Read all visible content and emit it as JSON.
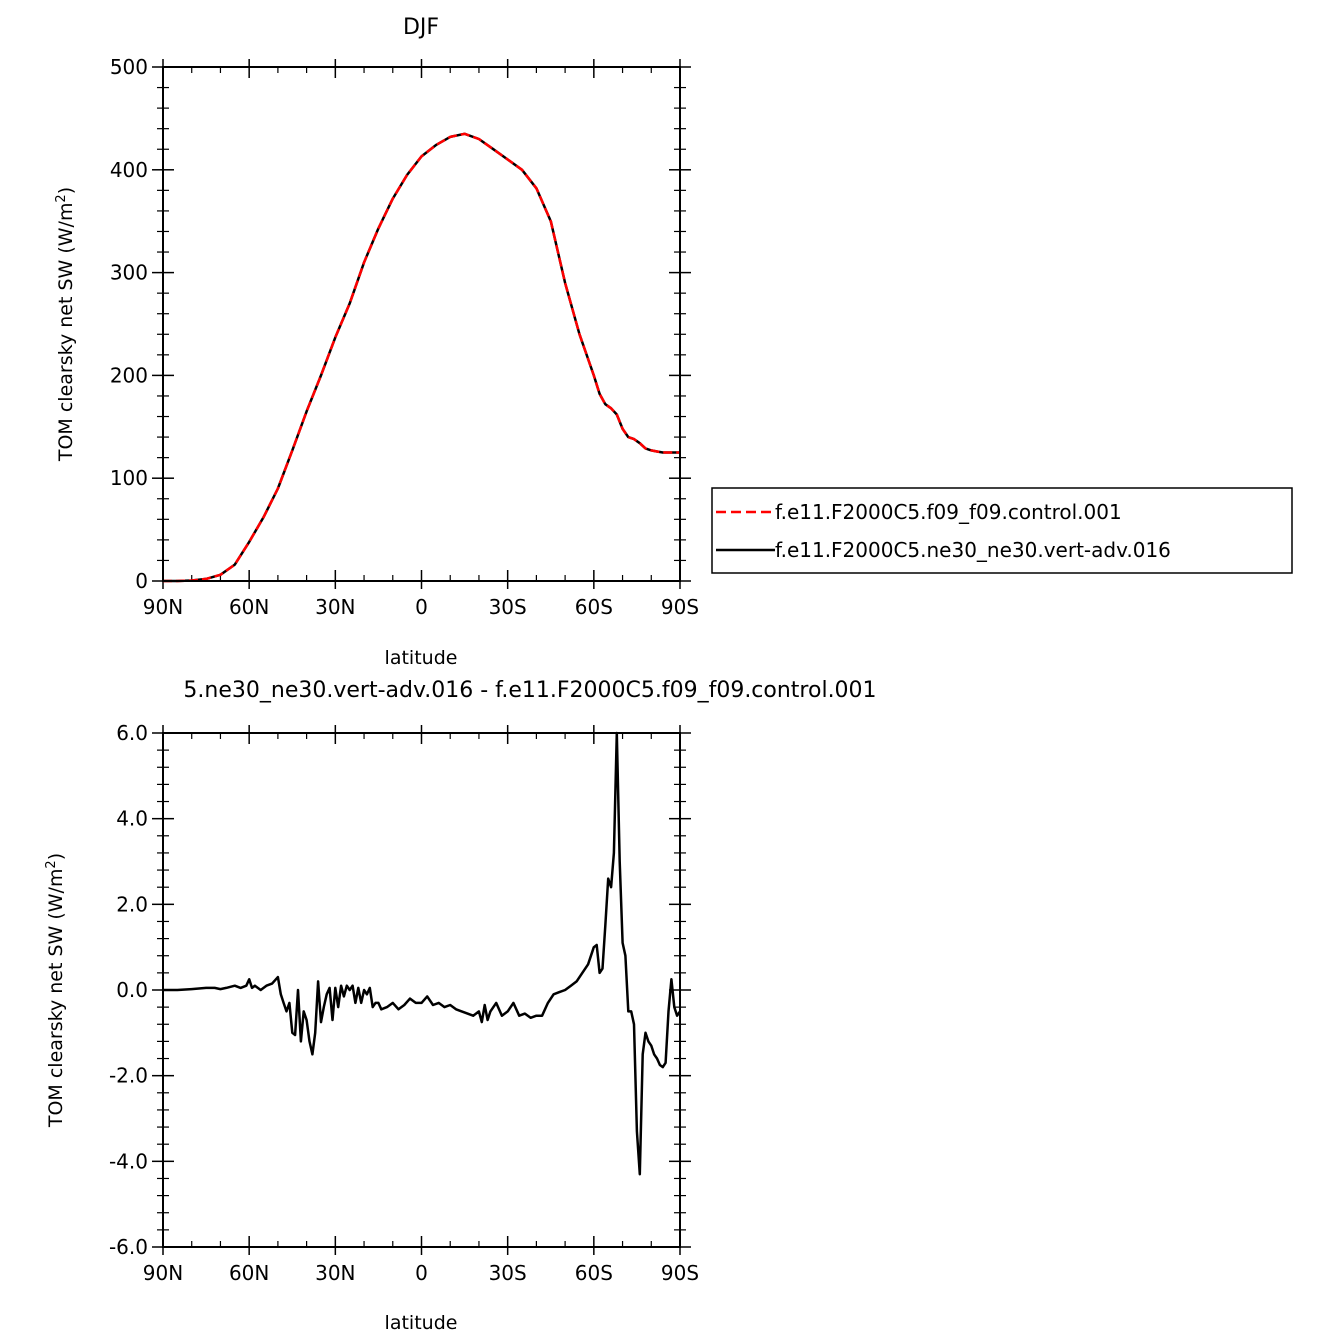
{
  "chart_data": [
    {
      "type": "line",
      "title": "DJF",
      "xlabel": "latitude",
      "ylabel": "TOM clearsky net SW (W/m²)",
      "ylabel_main": "TOM clearsky net SW (W/m",
      "ylabel_sup": "2",
      "ylabel_close": ")",
      "xlim": [
        90,
        -90
      ],
      "ylim": [
        0,
        500
      ],
      "xticks": [
        90,
        60,
        30,
        0,
        -30,
        -60,
        -90
      ],
      "xtick_labels": [
        "90N",
        "60N",
        "30N",
        "0",
        "30S",
        "60S",
        "90S"
      ],
      "yticks": [
        0,
        100,
        200,
        300,
        400,
        500
      ],
      "ytick_labels": [
        "0",
        "100",
        "200",
        "300",
        "400",
        "500"
      ],
      "legend_position": "right",
      "grid": false,
      "series": [
        {
          "name": "f.e11.F2000C5.f09_f09.control.001",
          "color": "#ff0000",
          "dash": "dashed",
          "x": [
            90,
            85,
            80,
            75,
            70,
            65,
            60,
            55,
            50,
            45,
            40,
            35,
            30,
            25,
            20,
            15,
            10,
            5,
            0,
            -5,
            -10,
            -15,
            -20,
            -25,
            -30,
            -35,
            -40,
            -45,
            -50,
            -55,
            -60,
            -62,
            -64,
            -66,
            -68,
            -70,
            -72,
            -74,
            -76,
            -78,
            -80,
            -82,
            -84,
            -86,
            -88,
            -90
          ],
          "y": [
            0,
            0,
            0.5,
            2,
            6,
            16,
            38,
            62,
            90,
            127,
            165,
            200,
            237,
            270,
            310,
            343,
            372,
            395,
            413,
            424,
            432,
            435,
            430,
            420,
            410,
            400,
            382,
            350,
            290,
            240,
            200,
            182,
            172,
            168,
            162,
            148,
            140,
            138,
            134,
            129,
            127,
            126,
            125,
            125,
            125,
            125
          ]
        },
        {
          "name": "f.e11.F2000C5.ne30_ne30.vert-adv.016",
          "color": "#000000",
          "dash": "solid",
          "x": [
            90,
            85,
            80,
            75,
            70,
            65,
            60,
            55,
            50,
            45,
            40,
            35,
            30,
            25,
            20,
            15,
            10,
            5,
            0,
            -5,
            -10,
            -15,
            -20,
            -25,
            -30,
            -35,
            -40,
            -45,
            -50,
            -55,
            -60,
            -62,
            -64,
            -66,
            -68,
            -70,
            -72,
            -74,
            -76,
            -78,
            -80,
            -82,
            -84,
            -86,
            -88,
            -90
          ],
          "y": [
            0,
            0,
            0.5,
            2,
            6,
            16,
            38,
            62,
            90,
            127,
            165,
            200,
            237,
            270,
            310,
            343,
            372,
            395,
            413,
            424,
            432,
            435,
            430,
            420,
            410,
            400,
            382,
            350,
            290,
            240,
            200,
            182,
            172,
            168,
            162,
            148,
            140,
            138,
            134,
            129,
            127,
            126,
            125,
            125,
            125,
            125
          ]
        }
      ]
    },
    {
      "type": "line",
      "title": "5.ne30_ne30.vert-adv.016 - f.e11.F2000C5.f09_f09.control.001",
      "xlabel": "latitude",
      "ylabel": "TOM clearsky net SW (W/m²)",
      "ylabel_main": "TOM clearsky net SW (W/m",
      "ylabel_sup": "2",
      "ylabel_close": ")",
      "xlim": [
        90,
        -90
      ],
      "ylim": [
        -6,
        6
      ],
      "xticks": [
        90,
        60,
        30,
        0,
        -30,
        -60,
        -90
      ],
      "xtick_labels": [
        "90N",
        "60N",
        "30N",
        "0",
        "30S",
        "60S",
        "90S"
      ],
      "yticks": [
        -6,
        -4,
        -2,
        0,
        2,
        4,
        6
      ],
      "ytick_labels": [
        "-6.0",
        "-4.0",
        "-2.0",
        "0.0",
        "2.0",
        "4.0",
        "6.0"
      ],
      "grid": false,
      "series": [
        {
          "color": "#000000",
          "x": [
            90,
            85,
            80,
            75,
            72,
            70,
            68,
            65,
            63,
            61,
            60,
            59,
            58,
            56,
            54,
            52,
            50,
            49,
            48,
            47,
            46,
            45,
            44,
            43,
            42,
            41,
            40,
            39,
            38,
            37,
            36,
            35,
            34,
            33,
            32,
            31,
            30,
            29,
            28,
            27,
            26,
            25,
            24,
            23,
            22,
            21,
            20,
            19,
            18,
            17,
            16,
            15,
            14,
            12,
            10,
            8,
            6,
            4,
            2,
            0,
            -2,
            -4,
            -6,
            -8,
            -10,
            -12,
            -14,
            -16,
            -18,
            -20,
            -21,
            -22,
            -23,
            -24,
            -26,
            -28,
            -30,
            -32,
            -34,
            -36,
            -38,
            -40,
            -42,
            -44,
            -46,
            -48,
            -50,
            -52,
            -54,
            -56,
            -58,
            -60,
            -61,
            -62,
            -63,
            -64,
            -65,
            -66,
            -67,
            -68,
            -69,
            -70,
            -71,
            -72,
            -73,
            -74,
            -75,
            -76,
            -77,
            -78,
            -79,
            -80,
            -81,
            -82,
            -83,
            -84,
            -85,
            -86,
            -87,
            -88,
            -89,
            -90
          ],
          "y": [
            0,
            0,
            0.02,
            0.05,
            0.05,
            0.02,
            0.05,
            0.1,
            0.05,
            0.1,
            0.25,
            0.05,
            0.1,
            0.0,
            0.1,
            0.15,
            0.3,
            -0.1,
            -0.3,
            -0.5,
            -0.3,
            -1.0,
            -1.05,
            0.0,
            -1.2,
            -0.5,
            -0.7,
            -1.2,
            -1.5,
            -1.0,
            0.2,
            -0.75,
            -0.4,
            -0.1,
            0.05,
            -0.7,
            0.05,
            -0.4,
            0.1,
            -0.15,
            0.1,
            0.0,
            0.1,
            -0.3,
            0.05,
            -0.3,
            0.0,
            -0.1,
            0.05,
            -0.4,
            -0.3,
            -0.3,
            -0.45,
            -0.4,
            -0.3,
            -0.45,
            -0.35,
            -0.2,
            -0.3,
            -0.3,
            -0.15,
            -0.35,
            -0.3,
            -0.4,
            -0.35,
            -0.45,
            -0.5,
            -0.55,
            -0.6,
            -0.5,
            -0.75,
            -0.35,
            -0.7,
            -0.5,
            -0.3,
            -0.6,
            -0.5,
            -0.3,
            -0.6,
            -0.55,
            -0.65,
            -0.6,
            -0.6,
            -0.3,
            -0.1,
            -0.05,
            0.0,
            0.1,
            0.2,
            0.4,
            0.6,
            1.0,
            1.05,
            0.4,
            0.5,
            1.5,
            2.6,
            2.4,
            3.2,
            6.0,
            3.0,
            1.1,
            0.8,
            -0.5,
            -0.5,
            -0.8,
            -3.3,
            -4.3,
            -1.5,
            -1.0,
            -1.2,
            -1.3,
            -1.5,
            -1.6,
            -1.75,
            -1.8,
            -1.7,
            -0.5,
            0.25,
            -0.4,
            -0.6,
            -0.5
          ]
        }
      ]
    }
  ]
}
